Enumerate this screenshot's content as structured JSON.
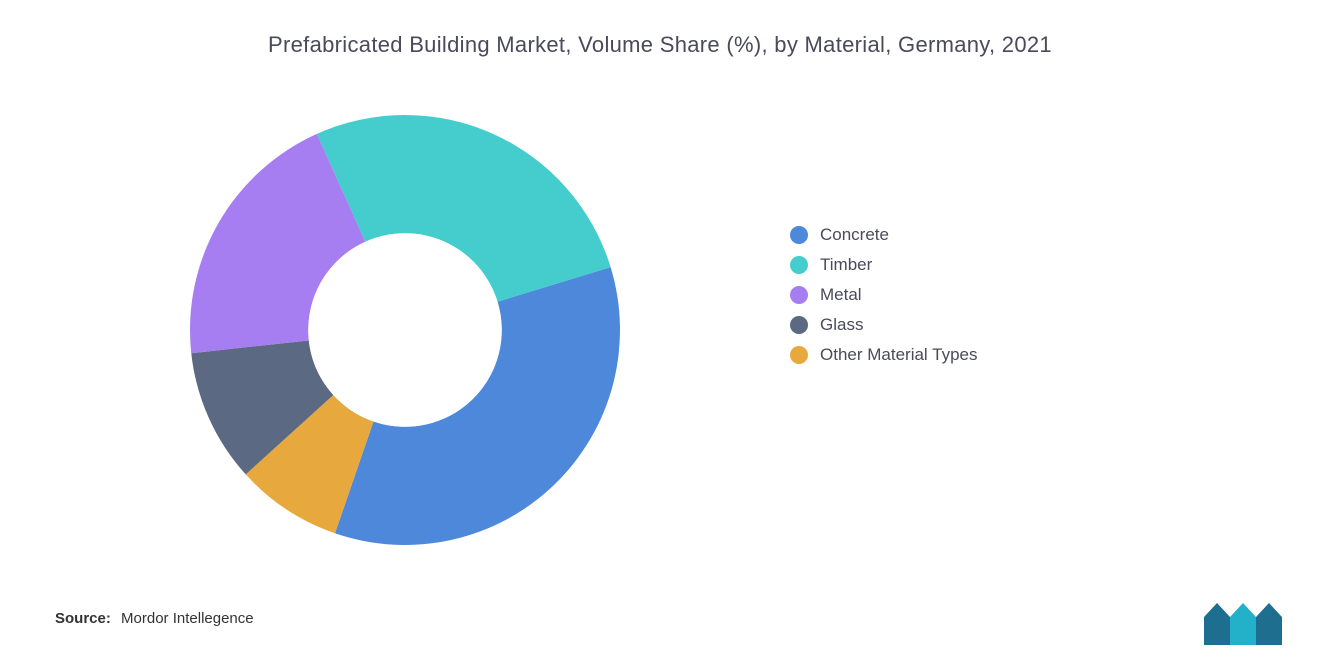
{
  "chart": {
    "type": "donut",
    "title": "Prefabricated Building Market, Volume Share (%), by Material, Germany, 2021",
    "background_color": "#ffffff",
    "title_fontsize": 22,
    "title_color": "#4a4a5a",
    "inner_radius_ratio": 0.45,
    "outer_radius": 215,
    "start_angle_deg": -17,
    "slices": [
      {
        "name": "Concrete",
        "value": 35,
        "color": "#4d88db"
      },
      {
        "name": "Timber",
        "value": 27,
        "color": "#45cccc"
      },
      {
        "name": "Metal",
        "value": 20,
        "color": "#a77df2"
      },
      {
        "name": "Glass",
        "value": 10,
        "color": "#5b6a82"
      },
      {
        "name": "Other Material Types",
        "value": 8,
        "color": "#e7a93d"
      }
    ],
    "legend": {
      "fontsize": 17,
      "text_color": "#4a4a5a",
      "swatch_shape": "circle",
      "swatch_size": 18
    }
  },
  "source": {
    "label": "Source:",
    "text": "Mordor Intellegence"
  },
  "logo": {
    "name": "mordor-intelligence-logo",
    "bar_colors": [
      "#1d6e8f",
      "#23b0c9",
      "#1d6e8f"
    ]
  }
}
